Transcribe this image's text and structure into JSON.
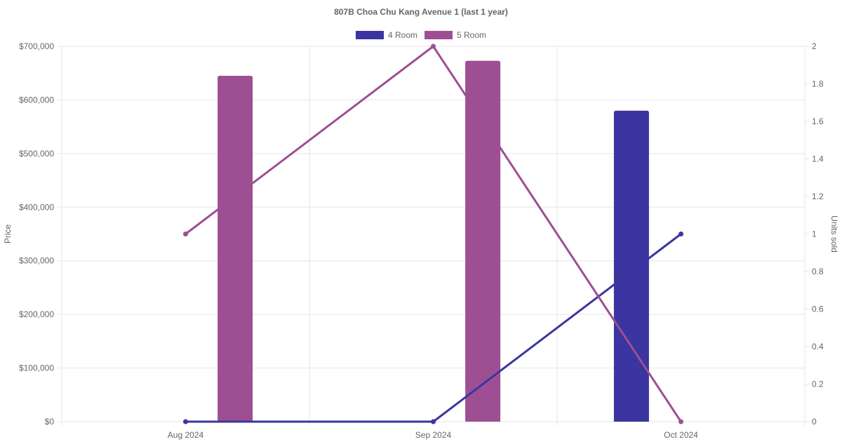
{
  "chart_data": {
    "type": "bar",
    "title": "807B Choa Chu Kang Avenue 1 (last 1 year)",
    "categories": [
      "Aug 2024",
      "Sep 2024",
      "Oct 2024"
    ],
    "y_left": {
      "label": "Price",
      "ylim": [
        0,
        700000
      ],
      "ticks": [
        "$0",
        "$100,000",
        "$200,000",
        "$300,000",
        "$400,000",
        "$500,000",
        "$600,000",
        "$700,000"
      ],
      "tick_values": [
        0,
        100000,
        200000,
        300000,
        400000,
        500000,
        600000,
        700000
      ]
    },
    "y_right": {
      "label": "Units sold",
      "ylim": [
        0,
        2
      ],
      "ticks": [
        "0",
        "0.2",
        "0.4",
        "0.6",
        "0.8",
        "1",
        "1.2",
        "1.4",
        "1.6",
        "1.8",
        "2"
      ],
      "tick_values": [
        0,
        0.2,
        0.4,
        0.6,
        0.8,
        1,
        1.2,
        1.4,
        1.6,
        1.8,
        2
      ]
    },
    "series": [
      {
        "name": "4 Room",
        "color": "#3a35a0",
        "price": [
          null,
          null,
          580000
        ],
        "units_sold": [
          0,
          0,
          1
        ]
      },
      {
        "name": "5 Room",
        "color": "#9e4f93",
        "price": [
          645000,
          673000,
          null
        ],
        "units_sold": [
          1,
          2,
          0
        ]
      }
    ],
    "legend_position": "top-center",
    "grid": true
  }
}
